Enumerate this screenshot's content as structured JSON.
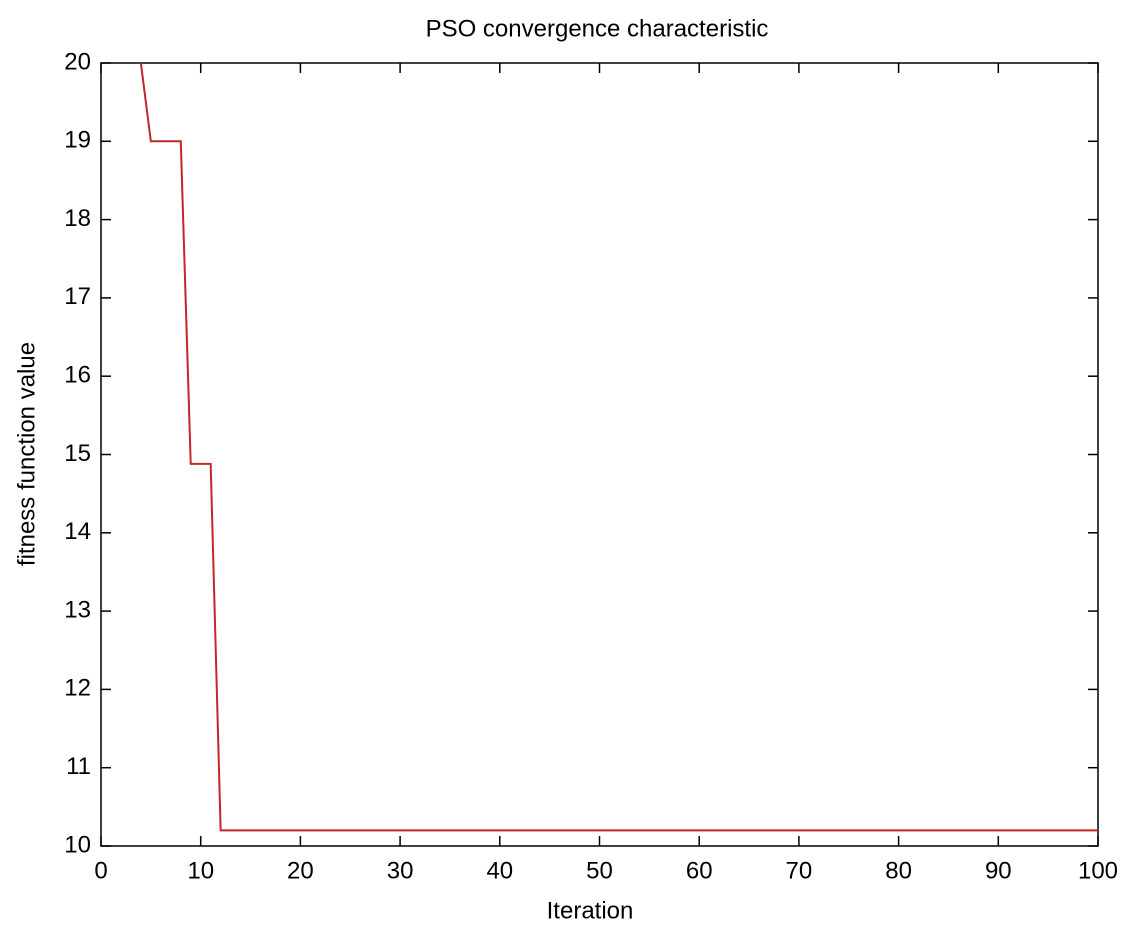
{
  "chart_data": {
    "type": "line",
    "title": "PSO convergence characteristic",
    "x_label": "Iteration",
    "y_label": "fitness function value",
    "x": [
      4,
      5,
      8,
      9,
      11,
      12,
      100
    ],
    "series": [
      {
        "color": "#c0282d",
        "values": [
          20,
          19,
          19,
          14.88,
          14.88,
          10.2,
          10.2
        ]
      }
    ],
    "xlim": [
      0,
      100
    ],
    "xticks": [
      0,
      10,
      20,
      30,
      40,
      50,
      60,
      70,
      80,
      90,
      100
    ],
    "ylim": [
      10,
      20
    ],
    "yticks": [
      10,
      11,
      12,
      13,
      14,
      15,
      16,
      17,
      18,
      19,
      20
    ],
    "grid": false
  }
}
